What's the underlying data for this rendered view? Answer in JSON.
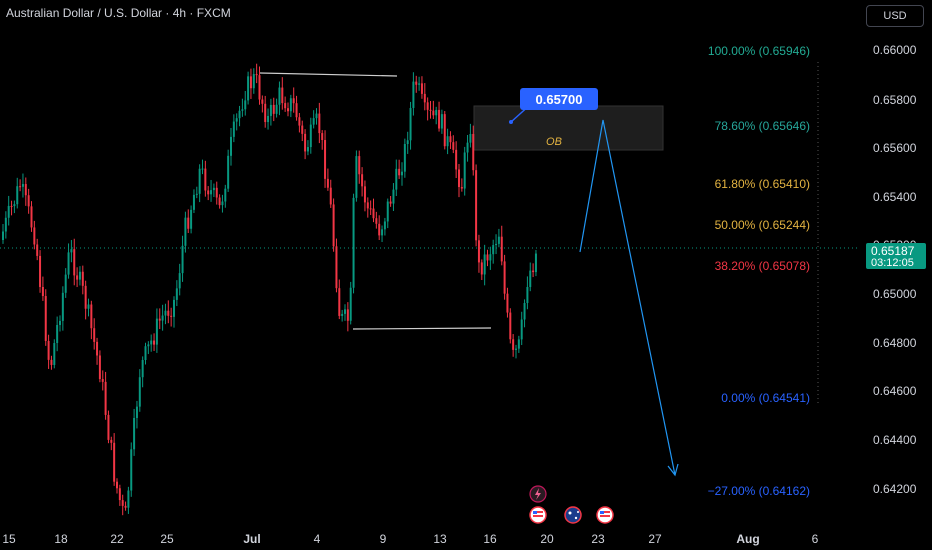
{
  "header": {
    "title": "Australian Dollar / U.S. Dollar · 4h · FXCM",
    "currency_button": "USD"
  },
  "price_axis": {
    "ticks": [
      "0.66000",
      "0.65800",
      "0.65600",
      "0.65400",
      "0.65200",
      "0.65000",
      "0.64800",
      "0.64600",
      "0.64400",
      "0.64200"
    ]
  },
  "current_price": {
    "value": "0.65187",
    "countdown": "03:12:05",
    "color": "#089981"
  },
  "time_axis": {
    "ticks": [
      "15",
      "18",
      "22",
      "25",
      "Jul",
      "4",
      "9",
      "13",
      "16",
      "20",
      "23",
      "27",
      "Aug",
      "6"
    ]
  },
  "fib_levels": [
    {
      "label": "100.00% (0.65946)",
      "color": "#22ab94"
    },
    {
      "label": "78.60% (0.65646)",
      "color": "#26a69a"
    },
    {
      "label": "61.80% (0.65410)",
      "color": "#e3b341"
    },
    {
      "label": "50.00% (0.65244)",
      "color": "#e3b341"
    },
    {
      "label": "38.20% (0.65078)",
      "color": "#f23645"
    },
    {
      "label": "0.00% (0.64541)",
      "color": "#2962ff"
    },
    {
      "label": "−27.00% (0.64162)",
      "color": "#2962ff"
    }
  ],
  "order_block": {
    "label": "OB",
    "color": "#e3b341"
  },
  "callout": {
    "value": "0.65700",
    "color": "#2962ff"
  },
  "colors": {
    "up": "#089981",
    "down": "#f23645",
    "projection": "#2196f3"
  },
  "event_icons": [
    "lightning-icon",
    "us-flag-icon",
    "au-flag-icon",
    "us-flag-icon"
  ]
}
